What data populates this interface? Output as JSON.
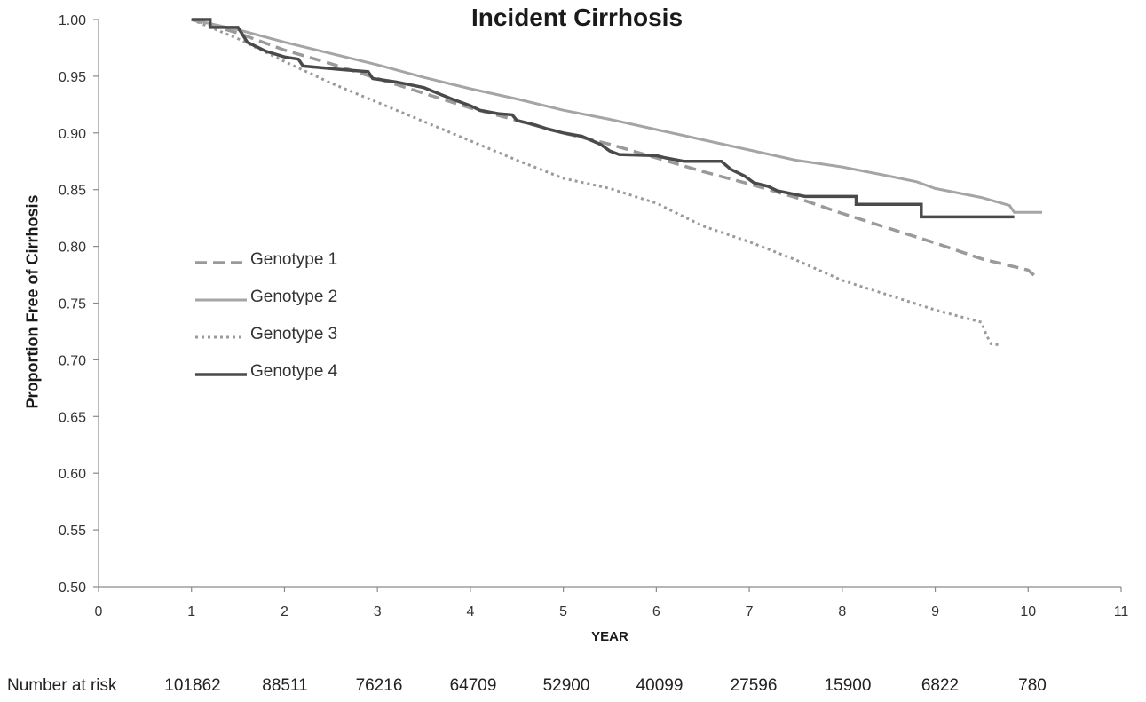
{
  "chart_data": {
    "type": "line",
    "title": "Incident Cirrhosis",
    "xlabel": "YEAR",
    "ylabel": "Proportion Free of Cirrhosis",
    "xlim": [
      0,
      11
    ],
    "ylim": [
      0.5,
      1.0
    ],
    "x_ticks": [
      "0",
      "1",
      "2",
      "3",
      "4",
      "5",
      "6",
      "7",
      "8",
      "9",
      "10",
      "11"
    ],
    "y_ticks": [
      "0.50",
      "0.55",
      "0.60",
      "0.65",
      "0.70",
      "0.75",
      "0.80",
      "0.85",
      "0.90",
      "0.95",
      "1.00"
    ],
    "grid": false,
    "legend_position": "left-middle",
    "series": [
      {
        "name": "Genotype 1",
        "style": "dashed",
        "color": "#9a9a9a",
        "points": [
          [
            1,
            1.0
          ],
          [
            1.5,
            0.988
          ],
          [
            2,
            0.973
          ],
          [
            2.5,
            0.961
          ],
          [
            3,
            0.948
          ],
          [
            3.5,
            0.935
          ],
          [
            4,
            0.922
          ],
          [
            4.5,
            0.911
          ],
          [
            5,
            0.9
          ],
          [
            5.5,
            0.89
          ],
          [
            6,
            0.878
          ],
          [
            6.5,
            0.866
          ],
          [
            7,
            0.855
          ],
          [
            7.5,
            0.843
          ],
          [
            8,
            0.829
          ],
          [
            8.5,
            0.816
          ],
          [
            9,
            0.803
          ],
          [
            9.5,
            0.789
          ],
          [
            10,
            0.779
          ],
          [
            10.1,
            0.772
          ]
        ]
      },
      {
        "name": "Genotype 2",
        "style": "solid",
        "color": "#a5a5a5",
        "points": [
          [
            1,
            1.0
          ],
          [
            1.5,
            0.991
          ],
          [
            2,
            0.98
          ],
          [
            2.5,
            0.97
          ],
          [
            3,
            0.96
          ],
          [
            3.5,
            0.949
          ],
          [
            4,
            0.939
          ],
          [
            4.5,
            0.93
          ],
          [
            5,
            0.92
          ],
          [
            5.5,
            0.912
          ],
          [
            6,
            0.903
          ],
          [
            6.5,
            0.894
          ],
          [
            7,
            0.885
          ],
          [
            7.5,
            0.876
          ],
          [
            8,
            0.87
          ],
          [
            8.5,
            0.862
          ],
          [
            8.8,
            0.857
          ],
          [
            9,
            0.851
          ],
          [
            9.5,
            0.843
          ],
          [
            9.8,
            0.836
          ],
          [
            9.85,
            0.83
          ],
          [
            10.15,
            0.83
          ]
        ]
      },
      {
        "name": "Genotype 3",
        "style": "dotted",
        "color": "#9a9a9a",
        "points": [
          [
            1,
            1.0
          ],
          [
            1.5,
            0.983
          ],
          [
            2,
            0.963
          ],
          [
            2.5,
            0.944
          ],
          [
            3,
            0.927
          ],
          [
            3.5,
            0.91
          ],
          [
            4,
            0.893
          ],
          [
            4.5,
            0.876
          ],
          [
            5,
            0.86
          ],
          [
            5.5,
            0.851
          ],
          [
            6,
            0.838
          ],
          [
            6.5,
            0.818
          ],
          [
            7,
            0.804
          ],
          [
            7.5,
            0.788
          ],
          [
            8,
            0.77
          ],
          [
            8.5,
            0.757
          ],
          [
            9,
            0.744
          ],
          [
            9.5,
            0.733
          ],
          [
            9.55,
            0.722
          ],
          [
            9.6,
            0.714
          ],
          [
            9.7,
            0.713
          ]
        ]
      },
      {
        "name": "Genotype 4",
        "style": "solid",
        "color": "#4a4a4a",
        "points": [
          [
            1,
            1.0
          ],
          [
            1.2,
            1.0
          ],
          [
            1.2,
            0.993
          ],
          [
            1.5,
            0.993
          ],
          [
            1.6,
            0.98
          ],
          [
            1.8,
            0.972
          ],
          [
            2,
            0.967
          ],
          [
            2.15,
            0.965
          ],
          [
            2.2,
            0.959
          ],
          [
            2.6,
            0.956
          ],
          [
            2.9,
            0.954
          ],
          [
            2.95,
            0.948
          ],
          [
            3.2,
            0.945
          ],
          [
            3.5,
            0.94
          ],
          [
            3.8,
            0.93
          ],
          [
            4,
            0.924
          ],
          [
            4.1,
            0.92
          ],
          [
            4.3,
            0.917
          ],
          [
            4.45,
            0.916
          ],
          [
            4.5,
            0.911
          ],
          [
            4.7,
            0.907
          ],
          [
            4.85,
            0.903
          ],
          [
            5,
            0.9
          ],
          [
            5.2,
            0.897
          ],
          [
            5.4,
            0.89
          ],
          [
            5.5,
            0.884
          ],
          [
            5.6,
            0.881
          ],
          [
            6,
            0.88
          ],
          [
            6.1,
            0.878
          ],
          [
            6.3,
            0.875
          ],
          [
            6.7,
            0.875
          ],
          [
            6.8,
            0.868
          ],
          [
            6.95,
            0.862
          ],
          [
            7.05,
            0.856
          ],
          [
            7.2,
            0.853
          ],
          [
            7.3,
            0.849
          ],
          [
            7.6,
            0.844
          ],
          [
            8.15,
            0.844
          ],
          [
            8.15,
            0.837
          ],
          [
            8.85,
            0.837
          ],
          [
            8.85,
            0.826
          ],
          [
            9.85,
            0.826
          ]
        ]
      }
    ],
    "number_at_risk": {
      "label": "Number at risk",
      "values": [
        "101862",
        "88511",
        "76216",
        "64709",
        "52900",
        "40099",
        "27596",
        "15900",
        "6822",
        "780"
      ]
    }
  }
}
